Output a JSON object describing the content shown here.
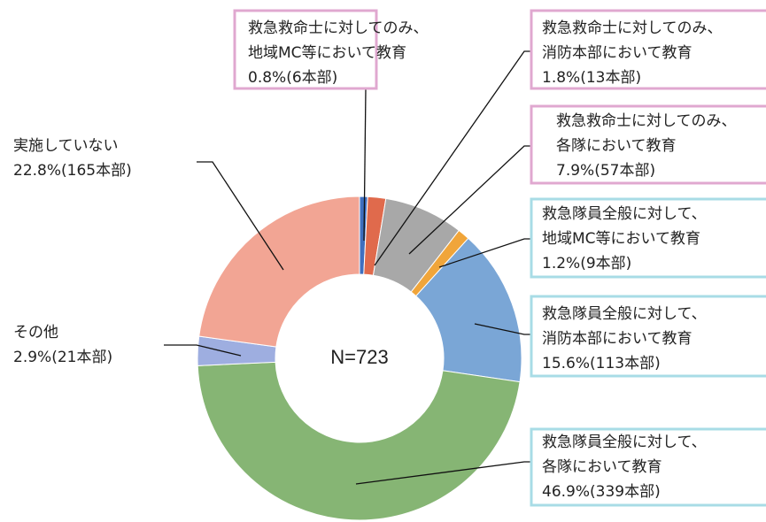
{
  "chart_data": {
    "type": "donut",
    "center_label": "N=723",
    "categories": [
      [
        "救急救命士に対してのみ、",
        "地域MC等において教育"
      ],
      [
        "救急救命士に対してのみ、",
        "消防本部において教育"
      ],
      [
        "救急救命士に対してのみ、",
        "各隊において教育"
      ],
      [
        "救急隊員全般に対して、",
        "地域MC等において教育"
      ],
      [
        "救急隊員全般に対して、",
        "消防本部において教育"
      ],
      [
        "救急隊員全般に対して、",
        "各隊において教育"
      ],
      [
        "その他"
      ],
      [
        "実施していない"
      ]
    ],
    "values": [
      0.8,
      1.8,
      7.9,
      1.2,
      15.6,
      46.9,
      2.9,
      22.8
    ],
    "value_labels": [
      "0.8%(6本部)",
      "1.8%(13本部)",
      "7.9%(57本部)",
      "1.2%(9本部)",
      "15.6%(113本部)",
      "46.9%(339本部)",
      "2.9%(21本部)",
      "22.8%(165本部)"
    ],
    "colors": [
      "#3f6fbf",
      "#e06a4c",
      "#a8a8a8",
      "#f0a53a",
      "#7aa6d6",
      "#86b574",
      "#9eaee0",
      "#f2a594"
    ],
    "box_colors": [
      "#e0a8d0",
      "#e0a8d0",
      "#e0a8d0",
      "#a8dce6",
      "#a8dce6",
      "#a8dce6",
      null,
      null
    ]
  }
}
